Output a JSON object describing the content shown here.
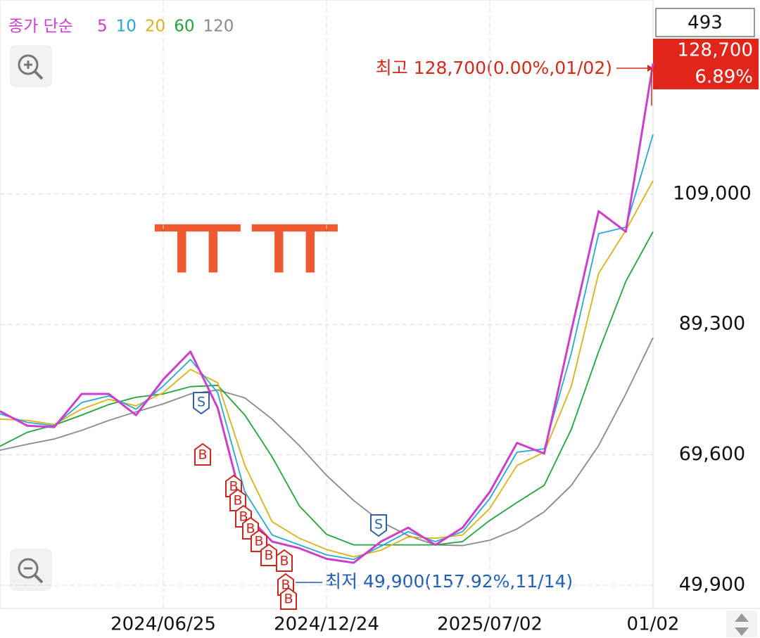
{
  "chart_data": {
    "type": "line",
    "legend": {
      "title": "종가 단순"
    },
    "categories": [
      null,
      null,
      null,
      null,
      null,
      null,
      "2024/06/25",
      null,
      null,
      null,
      null,
      null,
      "2024/12/24",
      null,
      null,
      null,
      null,
      null,
      "2025/07/02",
      null,
      null,
      null,
      null,
      null,
      "01/02"
    ],
    "series": [
      {
        "name": "5",
        "color": "#cc3fcc",
        "values": [
          76200,
          74000,
          73800,
          78800,
          78800,
          75600,
          81000,
          85200,
          76700,
          60800,
          56500,
          55500,
          53900,
          53300,
          56500,
          58600,
          56000,
          58600,
          64000,
          71400,
          69800,
          88400,
          106400,
          103300,
          128700
        ]
      },
      {
        "name": "10",
        "color": "#2aa6d6",
        "values": [
          75800,
          74500,
          74000,
          77500,
          78500,
          76500,
          80000,
          84000,
          79000,
          64000,
          57500,
          56000,
          54500,
          53800,
          55800,
          58000,
          56500,
          58000,
          63000,
          70000,
          70500,
          85000,
          103000,
          104000,
          118000
        ]
      },
      {
        "name": "20",
        "color": "#ddb11c",
        "values": [
          75000,
          74800,
          74200,
          76500,
          78000,
          77000,
          79000,
          82500,
          80500,
          68000,
          59500,
          57000,
          55300,
          54200,
          55200,
          57200,
          57000,
          57500,
          61500,
          68000,
          70000,
          80000,
          97000,
          103500,
          111000
        ]
      },
      {
        "name": "60",
        "color": "#23a33b",
        "values": [
          70900,
          73000,
          74100,
          75600,
          77200,
          78300,
          78800,
          79900,
          80100,
          75600,
          69300,
          61900,
          57600,
          56000,
          56000,
          56000,
          56000,
          56500,
          59700,
          62400,
          65000,
          73500,
          85200,
          95800,
          103300
        ]
      },
      {
        "name": "120",
        "color": "#8a8a8a",
        "values": [
          70300,
          71200,
          72000,
          73300,
          74800,
          76100,
          77300,
          78800,
          79400,
          78200,
          75000,
          71000,
          66500,
          62700,
          59500,
          57400,
          56000,
          55900,
          56700,
          58400,
          61000,
          65000,
          71000,
          78800,
          87300
        ]
      }
    ],
    "ylim": [
      46400,
      138300
    ],
    "yticks": [
      {
        "value": 49900,
        "label": "49,900"
      },
      {
        "value": 69600,
        "label": "69,600"
      },
      {
        "value": 89300,
        "label": "89,300"
      },
      {
        "value": 109000,
        "label": "109,000"
      }
    ],
    "grid": true,
    "annotations": {
      "high": "최고 128,700(0.00%,01/02)",
      "low": "최저 49,900(157.92%,11/14)",
      "doodle": "ㅠㅠ"
    },
    "signals": {
      "sell": "S",
      "buy": "B"
    },
    "count_box": 493,
    "last_price": {
      "value": 128700,
      "label": "128,700"
    },
    "change": {
      "value": 6.89,
      "label": "6.89%"
    }
  }
}
